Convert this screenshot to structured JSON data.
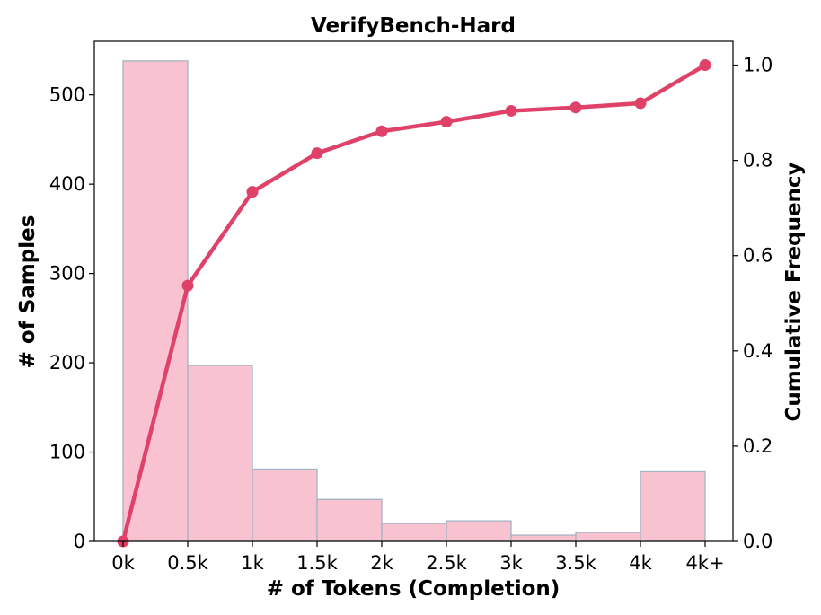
{
  "chart_data": {
    "type": "bar",
    "title": "VerifyBench-Hard",
    "xlabel": "# of Tokens (Completion)",
    "ylabel": "# of Samples",
    "y2label": "Cumulative Frequency",
    "x_ticks": [
      "0k",
      "0.5k",
      "1k",
      "1.5k",
      "2k",
      "2.5k",
      "3k",
      "3.5k",
      "4k",
      "4k+"
    ],
    "bins": [
      "0k-0.5k",
      "0.5k-1k",
      "1k-1.5k",
      "1.5k-2k",
      "2k-2.5k",
      "2.5k-3k",
      "3k-3.5k",
      "3.5k-4k",
      "4k-4k+"
    ],
    "values": [
      538,
      197,
      81,
      47,
      20,
      23,
      7,
      10,
      78
    ],
    "cumulative": [
      0.0,
      0.537,
      0.734,
      0.815,
      0.861,
      0.881,
      0.904,
      0.911,
      0.92,
      1.0
    ],
    "ylim": [
      0,
      560
    ],
    "y_ticks": [
      0,
      100,
      200,
      300,
      400,
      500
    ],
    "y2lim": [
      0,
      1.05
    ],
    "y2_ticks": [
      "0.0",
      "0.2",
      "0.4",
      "0.6",
      "0.8",
      "1.0"
    ],
    "grid": false,
    "colors": {
      "bar_fill": "#f8c2d1",
      "bar_edge": "#a3b4c2",
      "line": "#e04168"
    }
  }
}
